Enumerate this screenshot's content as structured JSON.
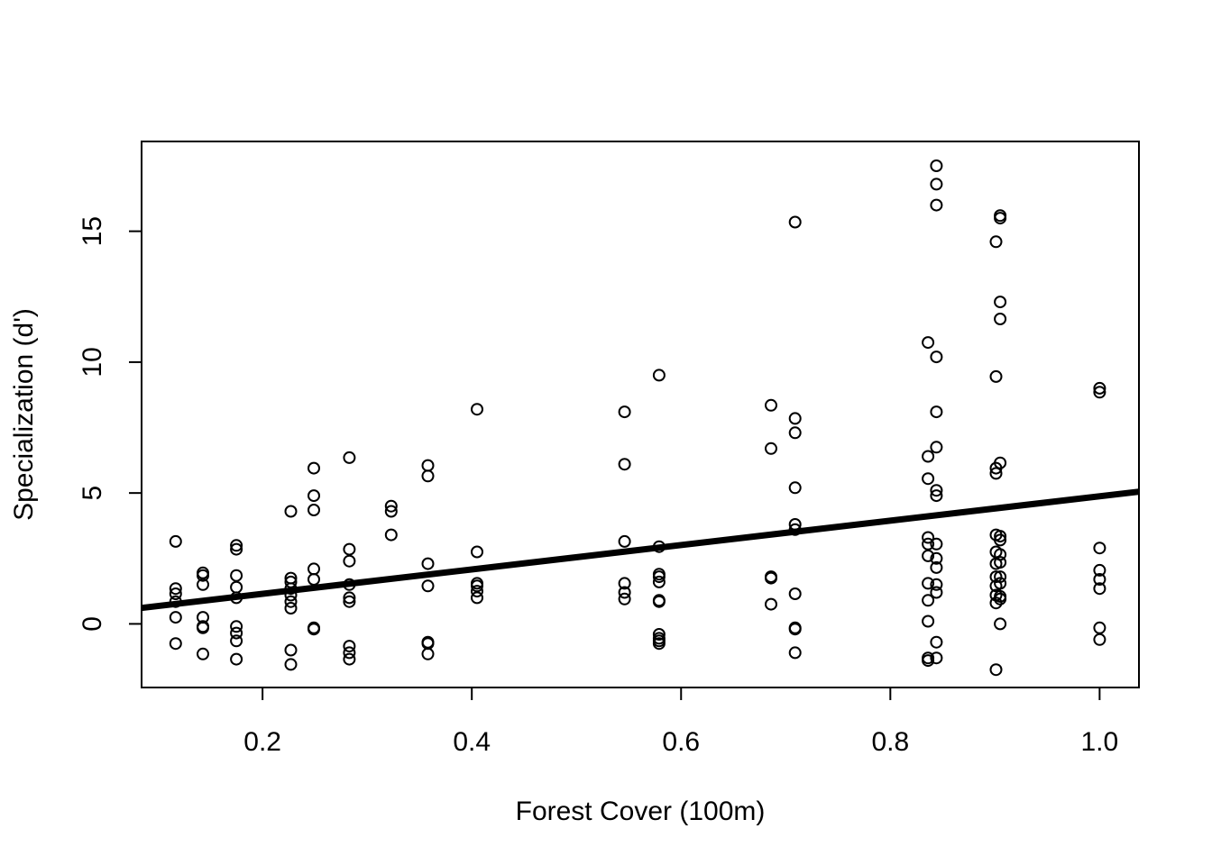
{
  "chart_data": {
    "type": "scatter",
    "title": "",
    "xlabel": "Forest Cover (100m)",
    "ylabel": "Specialization (d')",
    "xlim": [
      0.0844,
      1.0376
    ],
    "ylim": [
      -2.43,
      18.43
    ],
    "grid": false,
    "legend": "none",
    "x_ticks": [
      0.2,
      0.4,
      0.6,
      0.8,
      1.0
    ],
    "x_tick_labels": [
      "0.2",
      "0.4",
      "0.6",
      "0.8",
      "1.0"
    ],
    "y_ticks": [
      0,
      5,
      10,
      15
    ],
    "y_tick_labels": [
      "0",
      "5",
      "10",
      "15"
    ],
    "trend_line": {
      "x": [
        0.0844,
        1.0376
      ],
      "y": [
        0.61,
        5.05
      ]
    },
    "points": [
      [
        0.117,
        3.15
      ],
      [
        0.117,
        1.35
      ],
      [
        0.117,
        1.15
      ],
      [
        0.117,
        0.85
      ],
      [
        0.117,
        0.25
      ],
      [
        0.117,
        -0.75
      ],
      [
        0.143,
        1.95
      ],
      [
        0.143,
        1.85
      ],
      [
        0.143,
        1.5
      ],
      [
        0.143,
        0.25
      ],
      [
        0.143,
        -0.1
      ],
      [
        0.143,
        -0.15
      ],
      [
        0.143,
        -1.15
      ],
      [
        0.175,
        3.0
      ],
      [
        0.175,
        2.85
      ],
      [
        0.175,
        1.85
      ],
      [
        0.175,
        1.4
      ],
      [
        0.175,
        1.0
      ],
      [
        0.175,
        -0.1
      ],
      [
        0.175,
        -0.35
      ],
      [
        0.175,
        -0.65
      ],
      [
        0.175,
        -1.35
      ],
      [
        0.227,
        4.3
      ],
      [
        0.227,
        1.75
      ],
      [
        0.227,
        1.6
      ],
      [
        0.227,
        1.35
      ],
      [
        0.227,
        1.1
      ],
      [
        0.227,
        0.85
      ],
      [
        0.227,
        0.6
      ],
      [
        0.227,
        -1.0
      ],
      [
        0.227,
        -1.55
      ],
      [
        0.249,
        5.95
      ],
      [
        0.249,
        4.9
      ],
      [
        0.249,
        4.35
      ],
      [
        0.249,
        2.1
      ],
      [
        0.249,
        1.7
      ],
      [
        0.249,
        -0.15
      ],
      [
        0.249,
        -0.2
      ],
      [
        0.283,
        6.35
      ],
      [
        0.283,
        2.85
      ],
      [
        0.283,
        2.4
      ],
      [
        0.283,
        1.5
      ],
      [
        0.283,
        1.0
      ],
      [
        0.283,
        0.85
      ],
      [
        0.283,
        -0.85
      ],
      [
        0.283,
        -1.1
      ],
      [
        0.283,
        -1.35
      ],
      [
        0.323,
        4.5
      ],
      [
        0.323,
        4.3
      ],
      [
        0.323,
        3.4
      ],
      [
        0.358,
        6.05
      ],
      [
        0.358,
        5.65
      ],
      [
        0.358,
        2.3
      ],
      [
        0.358,
        1.45
      ],
      [
        0.358,
        -0.7
      ],
      [
        0.358,
        -0.75
      ],
      [
        0.358,
        -1.15
      ],
      [
        0.405,
        8.2
      ],
      [
        0.405,
        2.75
      ],
      [
        0.405,
        1.55
      ],
      [
        0.405,
        1.45
      ],
      [
        0.405,
        1.25
      ],
      [
        0.405,
        1.0
      ],
      [
        0.546,
        8.1
      ],
      [
        0.546,
        6.1
      ],
      [
        0.546,
        3.15
      ],
      [
        0.546,
        1.55
      ],
      [
        0.546,
        1.2
      ],
      [
        0.546,
        0.95
      ],
      [
        0.579,
        9.5
      ],
      [
        0.579,
        2.95
      ],
      [
        0.579,
        1.9
      ],
      [
        0.579,
        1.8
      ],
      [
        0.579,
        1.6
      ],
      [
        0.579,
        0.9
      ],
      [
        0.579,
        0.85
      ],
      [
        0.579,
        -0.4
      ],
      [
        0.579,
        -0.55
      ],
      [
        0.579,
        -0.65
      ],
      [
        0.579,
        -0.75
      ],
      [
        0.686,
        8.35
      ],
      [
        0.686,
        6.7
      ],
      [
        0.686,
        1.8
      ],
      [
        0.686,
        1.75
      ],
      [
        0.686,
        0.75
      ],
      [
        0.709,
        15.35
      ],
      [
        0.709,
        7.85
      ],
      [
        0.709,
        7.3
      ],
      [
        0.709,
        5.2
      ],
      [
        0.709,
        3.8
      ],
      [
        0.709,
        3.6
      ],
      [
        0.709,
        1.15
      ],
      [
        0.709,
        -0.15
      ],
      [
        0.709,
        -0.2
      ],
      [
        0.709,
        -1.1
      ],
      [
        0.836,
        10.75
      ],
      [
        0.836,
        6.4
      ],
      [
        0.836,
        5.55
      ],
      [
        0.836,
        3.3
      ],
      [
        0.836,
        3.05
      ],
      [
        0.836,
        2.6
      ],
      [
        0.836,
        1.55
      ],
      [
        0.836,
        0.9
      ],
      [
        0.836,
        0.1
      ],
      [
        0.836,
        -1.3
      ],
      [
        0.836,
        -1.4
      ],
      [
        0.844,
        17.5
      ],
      [
        0.844,
        16.8
      ],
      [
        0.844,
        16.0
      ],
      [
        0.844,
        10.2
      ],
      [
        0.844,
        8.1
      ],
      [
        0.844,
        6.75
      ],
      [
        0.844,
        5.1
      ],
      [
        0.844,
        4.9
      ],
      [
        0.844,
        3.05
      ],
      [
        0.844,
        2.5
      ],
      [
        0.844,
        2.15
      ],
      [
        0.844,
        1.5
      ],
      [
        0.844,
        1.2
      ],
      [
        0.844,
        -0.7
      ],
      [
        0.844,
        -1.3
      ],
      [
        0.901,
        14.6
      ],
      [
        0.901,
        9.45
      ],
      [
        0.901,
        5.95
      ],
      [
        0.901,
        5.75
      ],
      [
        0.901,
        3.4
      ],
      [
        0.901,
        2.75
      ],
      [
        0.901,
        2.3
      ],
      [
        0.901,
        1.8
      ],
      [
        0.901,
        1.45
      ],
      [
        0.901,
        1.1
      ],
      [
        0.901,
        0.8
      ],
      [
        0.901,
        -1.75
      ],
      [
        0.905,
        15.6
      ],
      [
        0.905,
        15.5
      ],
      [
        0.905,
        12.3
      ],
      [
        0.905,
        11.65
      ],
      [
        0.905,
        6.15
      ],
      [
        0.905,
        3.35
      ],
      [
        0.905,
        3.2
      ],
      [
        0.905,
        2.65
      ],
      [
        0.905,
        2.35
      ],
      [
        0.905,
        1.8
      ],
      [
        0.905,
        1.55
      ],
      [
        0.905,
        1.05
      ],
      [
        0.905,
        0.95
      ],
      [
        0.905,
        0.0
      ],
      [
        1.0,
        9.0
      ],
      [
        1.0,
        8.85
      ],
      [
        1.0,
        2.9
      ],
      [
        1.0,
        2.05
      ],
      [
        1.0,
        1.7
      ],
      [
        1.0,
        1.35
      ],
      [
        1.0,
        -0.15
      ],
      [
        1.0,
        -0.6
      ]
    ]
  }
}
